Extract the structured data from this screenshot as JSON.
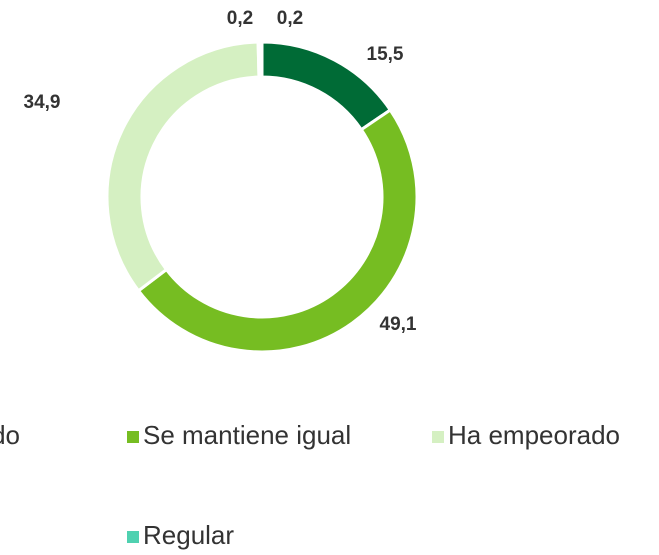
{
  "chart_data": {
    "type": "donut",
    "categories": [
      "do",
      "Se mantiene igual",
      "Ha empeorado",
      "Regular",
      null
    ],
    "values": [
      15.5,
      49.1,
      34.9,
      0.2,
      0.2
    ],
    "value_labels": [
      "15,5",
      "49,1",
      "34,9",
      "0,2",
      "0,2"
    ],
    "colors": [
      "#006b36",
      "#76bd22",
      "#d5f0c2",
      "#4fd1b0",
      "#9e9e9e"
    ],
    "legend": "bottom"
  }
}
